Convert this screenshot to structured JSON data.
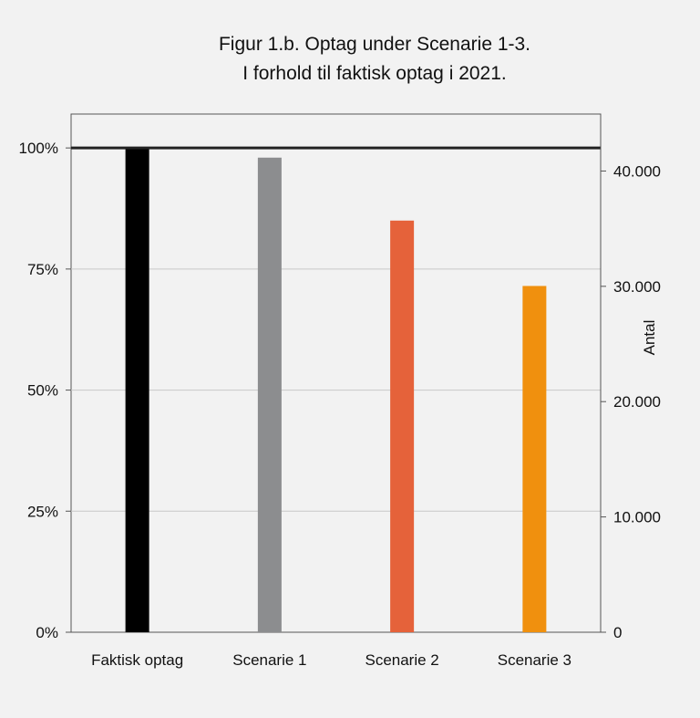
{
  "chart_data": {
    "type": "bar",
    "title_lines": [
      "Figur 1.b. Optag under Scenarie 1-3.",
      "I forhold til faktisk optag i 2021."
    ],
    "categories": [
      "Faktisk optag",
      "Scenarie 1",
      "Scenarie 2",
      "Scenarie 3"
    ],
    "values": [
      100,
      98,
      85,
      71.5
    ],
    "value_unit": "%",
    "bar_colors": [
      "#000000",
      "#8c8d8f",
      "#e5623a",
      "#f0900e"
    ],
    "reference_line": 100,
    "left_axis": {
      "ylim": [
        0,
        107
      ],
      "ticks": [
        0,
        25,
        50,
        75,
        100
      ],
      "tick_labels": [
        "0%",
        "25%",
        "50%",
        "75%",
        "100%"
      ]
    },
    "right_axis": {
      "label": "Antal",
      "max_at_100_percent": 42000,
      "ticks": [
        0,
        10000,
        20000,
        30000,
        40000
      ],
      "tick_labels": [
        "0",
        "10.000",
        "20.000",
        "30.000",
        "40.000"
      ]
    },
    "grid": true,
    "legend": "none",
    "colors": {
      "background": "#f2f2f2",
      "grid": "#c8c8c8",
      "axis": "#555555",
      "reference_line": "#222222"
    }
  }
}
